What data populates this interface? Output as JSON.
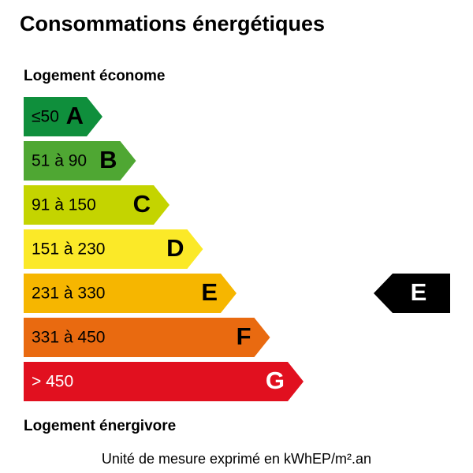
{
  "header": {
    "title": "Consommations énergétiques"
  },
  "top_label": "Logement économe",
  "bottom_label": "Logement énergivore",
  "classes": [
    {
      "range": "≤50",
      "letter": "A",
      "color": "#0f8f3c",
      "text_color": "#000000"
    },
    {
      "range": "51 à 90",
      "letter": "B",
      "color": "#4fa733",
      "text_color": "#000000"
    },
    {
      "range": "91 à 150",
      "letter": "C",
      "color": "#c4d400",
      "text_color": "#000000"
    },
    {
      "range": "151 à 230",
      "letter": "D",
      "color": "#fbe928",
      "text_color": "#000000"
    },
    {
      "range": "231 à 330",
      "letter": "E",
      "color": "#f6b600",
      "text_color": "#000000"
    },
    {
      "range": "331 à 450",
      "letter": "F",
      "color": "#e96a10",
      "text_color": "#000000"
    },
    {
      "range": "> 450",
      "letter": "G",
      "color": "#e1101f",
      "text_color": "#ffffff"
    }
  ],
  "rating": "E",
  "footer": "Unité de mesure exprimé en kWhEP/m².an"
}
